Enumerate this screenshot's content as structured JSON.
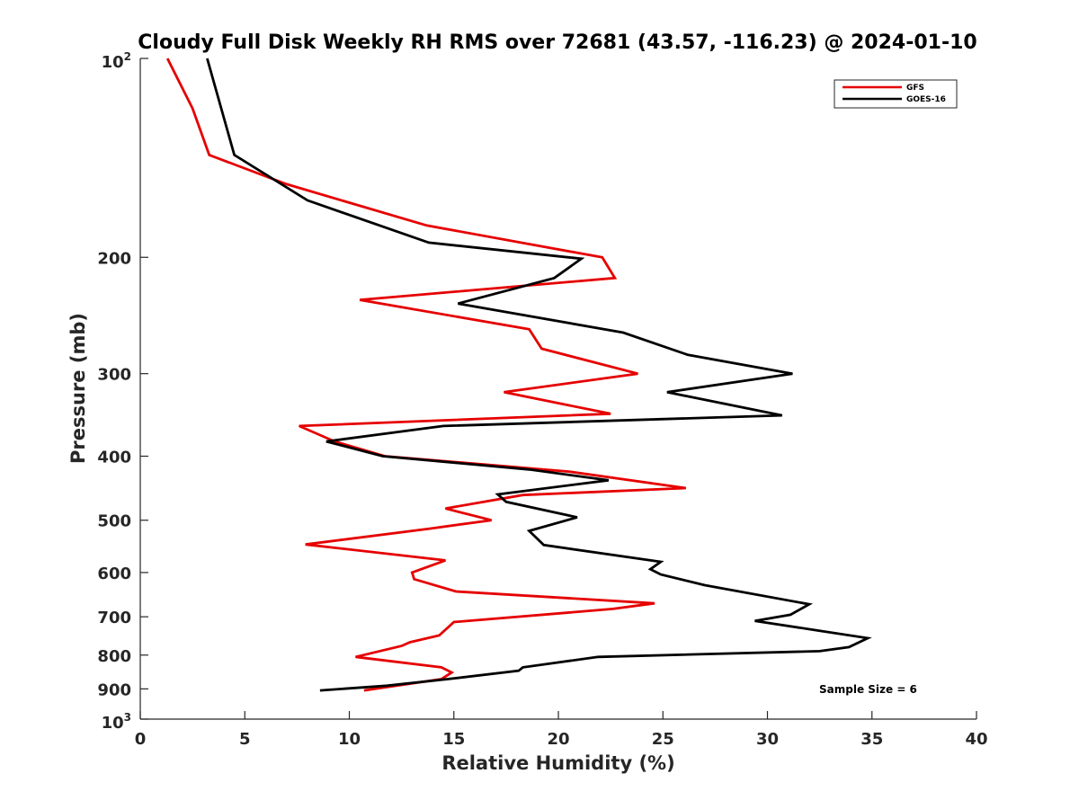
{
  "chart_data": {
    "type": "line",
    "title": "Cloudy Full Disk Weekly RH RMS over 72681 (43.57, -116.23) @ 2024-01-10",
    "xlabel": "Relative Humidity (%)",
    "ylabel": "Pressure (mb)",
    "xlim": [
      0,
      40
    ],
    "ylim": [
      100,
      1000
    ],
    "y_scale": "log",
    "y_reversed": true,
    "x_ticks": [
      "0",
      "5",
      "10",
      "15",
      "20",
      "25",
      "30",
      "35",
      "40"
    ],
    "y_ticks": [
      {
        "value": 100,
        "base": "10",
        "exp": "2"
      },
      {
        "value": 200,
        "label": "200"
      },
      {
        "value": 300,
        "label": "300"
      },
      {
        "value": 400,
        "label": "400"
      },
      {
        "value": 500,
        "label": "500"
      },
      {
        "value": 600,
        "label": "600"
      },
      {
        "value": 700,
        "label": "700"
      },
      {
        "value": 800,
        "label": "800"
      },
      {
        "value": 900,
        "label": "900"
      },
      {
        "value": 1000,
        "base": "10",
        "exp": "3"
      }
    ],
    "grid": false,
    "legend_position": "top-right",
    "annotation": "Sample Size = 6",
    "series": [
      {
        "name": "GFS",
        "color": "#e60000",
        "points": [
          [
            1.3,
            100
          ],
          [
            2.5,
            119
          ],
          [
            3.3,
            140
          ],
          [
            7.0,
            155
          ],
          [
            13.7,
            179
          ],
          [
            22.1,
            200
          ],
          [
            22.7,
            215
          ],
          [
            10.5,
            232
          ],
          [
            18.6,
            257
          ],
          [
            19.2,
            275
          ],
          [
            23.8,
            300
          ],
          [
            17.4,
            320
          ],
          [
            22.5,
            345
          ],
          [
            7.6,
            360
          ],
          [
            9.3,
            380
          ],
          [
            11.7,
            400
          ],
          [
            20.5,
            422
          ],
          [
            26.1,
            447
          ],
          [
            18.3,
            458
          ],
          [
            14.6,
            480
          ],
          [
            16.8,
            500
          ],
          [
            13.8,
            515
          ],
          [
            7.9,
            544
          ],
          [
            14.6,
            575
          ],
          [
            13.0,
            600
          ],
          [
            13.1,
            614
          ],
          [
            15.1,
            641
          ],
          [
            24.6,
            668
          ],
          [
            22.6,
            681
          ],
          [
            15.0,
            713
          ],
          [
            14.3,
            747
          ],
          [
            12.9,
            765
          ],
          [
            12.5,
            775
          ],
          [
            10.3,
            805
          ],
          [
            14.4,
            835
          ],
          [
            14.9,
            850
          ],
          [
            14.4,
            870
          ],
          [
            10.7,
            905
          ]
        ]
      },
      {
        "name": "GOES-16",
        "color": "#000000",
        "points": [
          [
            3.2,
            100
          ],
          [
            4.5,
            140
          ],
          [
            8.0,
            164
          ],
          [
            13.8,
            190
          ],
          [
            21.1,
            201
          ],
          [
            19.8,
            215
          ],
          [
            15.2,
            235
          ],
          [
            23.1,
            260
          ],
          [
            26.2,
            281
          ],
          [
            31.2,
            300
          ],
          [
            25.2,
            320
          ],
          [
            30.7,
            347
          ],
          [
            14.5,
            360
          ],
          [
            8.9,
            380
          ],
          [
            11.6,
            400
          ],
          [
            18.6,
            419
          ],
          [
            22.4,
            435
          ],
          [
            17.1,
            457
          ],
          [
            17.5,
            469
          ],
          [
            20.9,
            495
          ],
          [
            18.6,
            519
          ],
          [
            19.3,
            545
          ],
          [
            24.9,
            578
          ],
          [
            24.4,
            593
          ],
          [
            24.9,
            604
          ],
          [
            27.0,
            627
          ],
          [
            32.0,
            670
          ],
          [
            31.1,
            695
          ],
          [
            29.4,
            710
          ],
          [
            32.5,
            735
          ],
          [
            34.8,
            754
          ],
          [
            33.9,
            778
          ],
          [
            32.5,
            789
          ],
          [
            21.9,
            805
          ],
          [
            18.3,
            835
          ],
          [
            18.1,
            845
          ],
          [
            14.7,
            870
          ],
          [
            11.8,
            890
          ],
          [
            8.6,
            905
          ]
        ]
      }
    ]
  }
}
